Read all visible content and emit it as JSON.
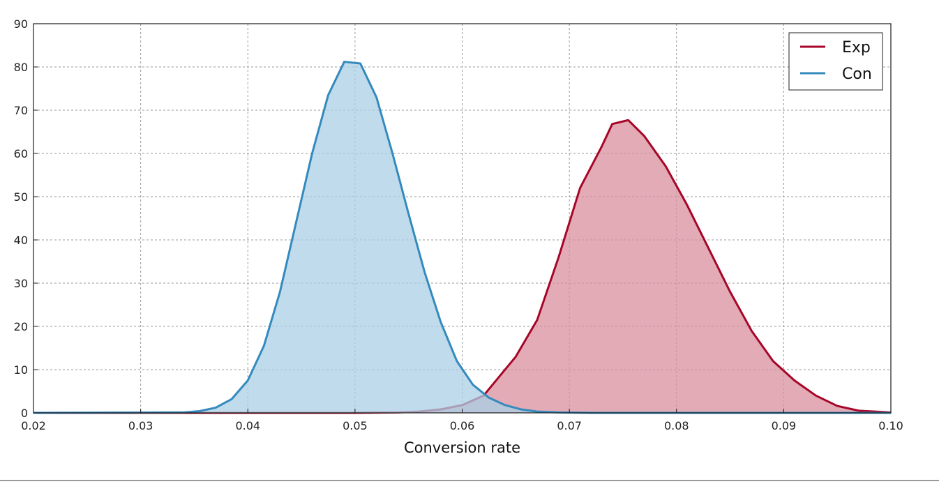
{
  "chart_data": {
    "type": "area",
    "title": "",
    "xlabel": "Conversion rate",
    "ylabel": "",
    "xlim": [
      0.02,
      0.1
    ],
    "ylim": [
      0,
      90
    ],
    "xticks": [
      "0.02",
      "0.03",
      "0.04",
      "0.05",
      "0.06",
      "0.07",
      "0.08",
      "0.09",
      "0.10"
    ],
    "yticks": [
      "0",
      "10",
      "20",
      "30",
      "40",
      "50",
      "60",
      "70",
      "80",
      "90"
    ],
    "grid": true,
    "legend_position": "top-right",
    "series": [
      {
        "name": "Exp",
        "color": "#a60628",
        "fill": "#d98f9e",
        "x": [
          0.02,
          0.05,
          0.054,
          0.056,
          0.058,
          0.06,
          0.062,
          0.063,
          0.065,
          0.067,
          0.069,
          0.071,
          0.073,
          0.074,
          0.0755,
          0.077,
          0.079,
          0.081,
          0.083,
          0.085,
          0.087,
          0.089,
          0.091,
          0.093,
          0.095,
          0.097,
          0.1
        ],
        "y": [
          0,
          0,
          0.1,
          0.3,
          0.8,
          1.8,
          4.0,
          7.0,
          13.0,
          21.5,
          36.0,
          52.0,
          61.5,
          66.8,
          67.7,
          64.0,
          57.0,
          48.0,
          38.0,
          28.0,
          19.0,
          12.0,
          7.5,
          4.0,
          1.6,
          0.5,
          0.1
        ]
      },
      {
        "name": "Con",
        "color": "#348abd",
        "fill": "#aacfe5",
        "x": [
          0.02,
          0.034,
          0.0355,
          0.037,
          0.0385,
          0.04,
          0.0415,
          0.043,
          0.0445,
          0.046,
          0.0475,
          0.049,
          0.0505,
          0.052,
          0.0535,
          0.055,
          0.0565,
          0.058,
          0.0595,
          0.061,
          0.0625,
          0.064,
          0.0655,
          0.067,
          0.069,
          0.072,
          0.1
        ],
        "y": [
          0,
          0.1,
          0.4,
          1.2,
          3.2,
          7.5,
          15.5,
          28.0,
          44.0,
          60.0,
          73.5,
          81.2,
          80.8,
          73.0,
          60.0,
          46.0,
          32.5,
          21.0,
          12.0,
          6.5,
          3.5,
          1.8,
          0.8,
          0.3,
          0.1,
          0,
          0
        ]
      }
    ]
  }
}
